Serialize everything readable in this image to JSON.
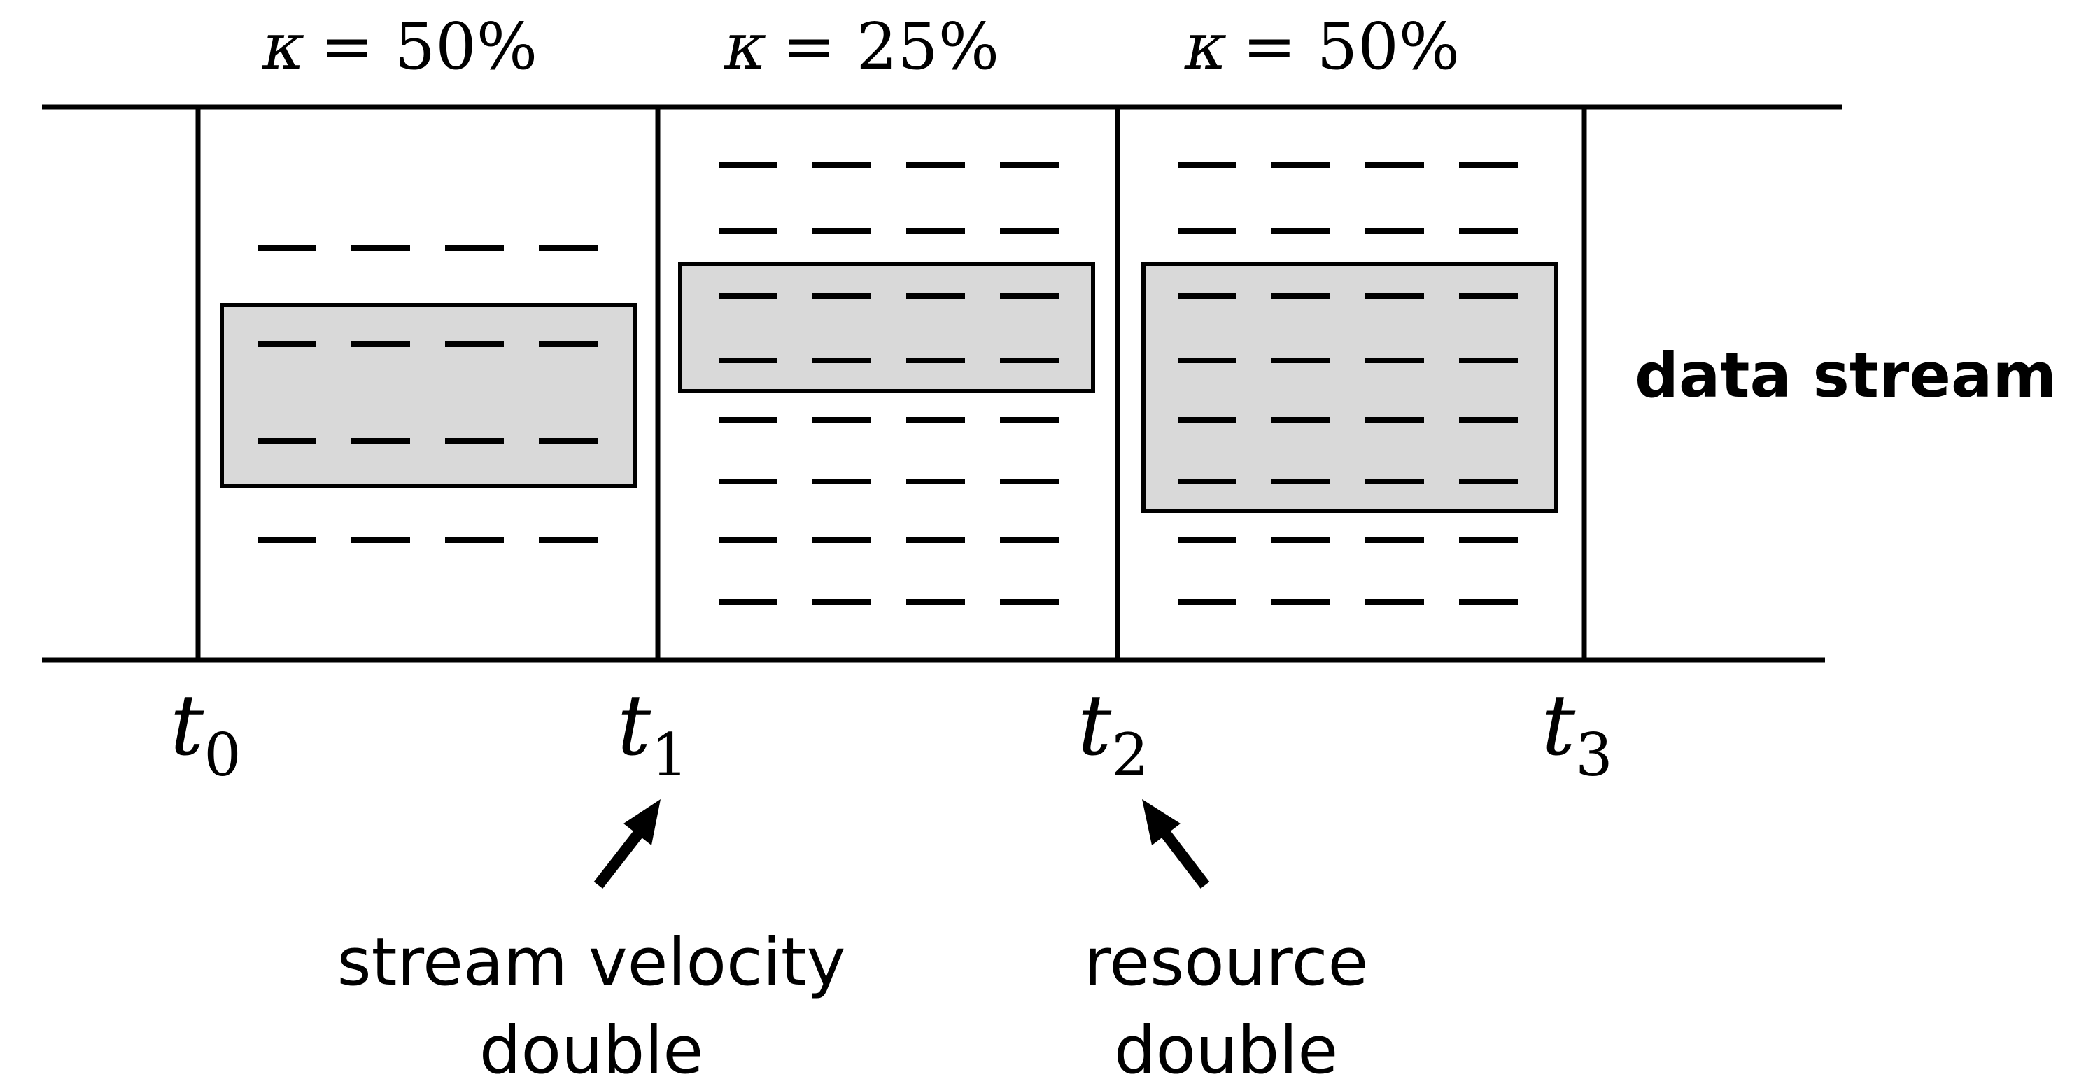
{
  "segments": [
    {
      "kappa_symbol": "κ",
      "kappa_value": "= 50%",
      "dash_rows": 4,
      "window_rows": [
        1,
        2
      ]
    },
    {
      "kappa_symbol": "κ",
      "kappa_value": "= 25%",
      "dash_rows": 8,
      "window_rows": [
        2,
        3
      ]
    },
    {
      "kappa_symbol": "κ",
      "kappa_value": "= 50%",
      "dash_rows": 8,
      "window_rows": [
        2,
        5
      ]
    }
  ],
  "time_marks": [
    {
      "letter": "t",
      "sub": "0"
    },
    {
      "letter": "t",
      "sub": "1"
    },
    {
      "letter": "t",
      "sub": "2"
    },
    {
      "letter": "t",
      "sub": "3"
    }
  ],
  "stream_label": "data stream",
  "annotations": [
    {
      "line1": "stream velocity",
      "line2": "double",
      "points_to_mark": 1
    },
    {
      "line1": "resource",
      "line2": "double",
      "points_to_mark": 2
    }
  ],
  "colors": {
    "window_fill": "#d9d9d9",
    "ink": "#000000"
  }
}
